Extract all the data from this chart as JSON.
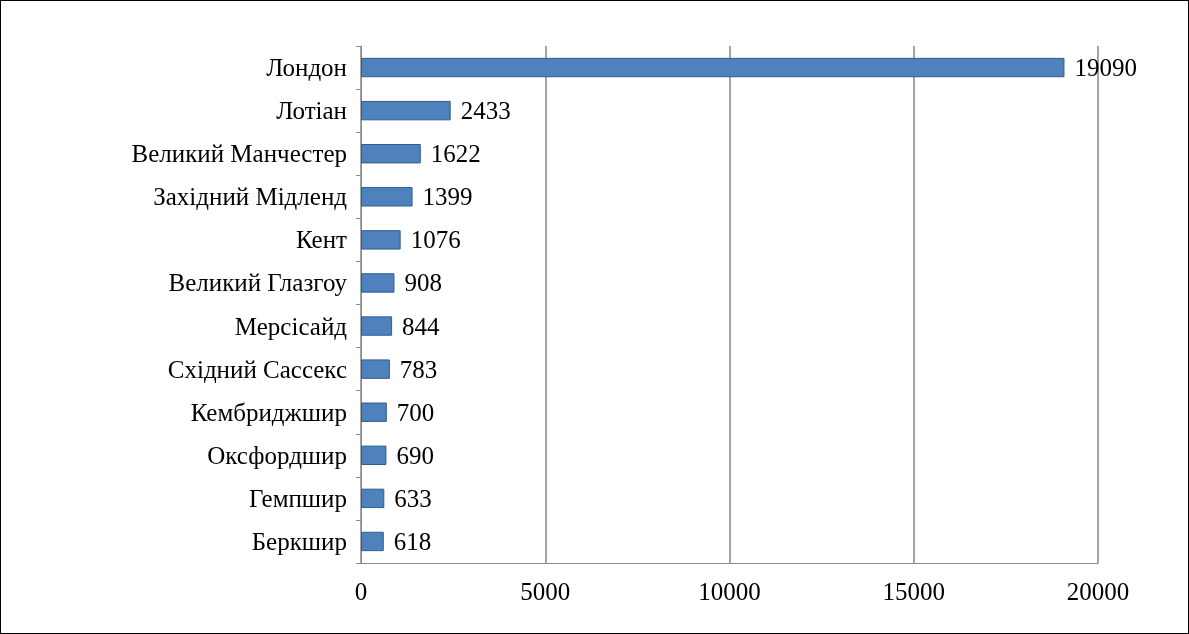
{
  "chart_data": {
    "type": "bar",
    "orientation": "horizontal",
    "categories": [
      "Лондон",
      "Лотіан",
      "Великий Манчестер",
      "Західний Мідленд",
      "Кент",
      "Великий Глазгоу",
      "Мерсісайд",
      "Східний Сассекс",
      "Кембриджшир",
      "Оксфордшир",
      "Гемпшир",
      "Беркшир"
    ],
    "values": [
      19090,
      2433,
      1622,
      1399,
      1076,
      908,
      844,
      783,
      700,
      690,
      633,
      618
    ],
    "color": "#4f81bd",
    "xlim": [
      0,
      20000
    ],
    "xticks": [
      0,
      5000,
      10000,
      15000,
      20000
    ],
    "grid": "x",
    "data_labels": true
  }
}
